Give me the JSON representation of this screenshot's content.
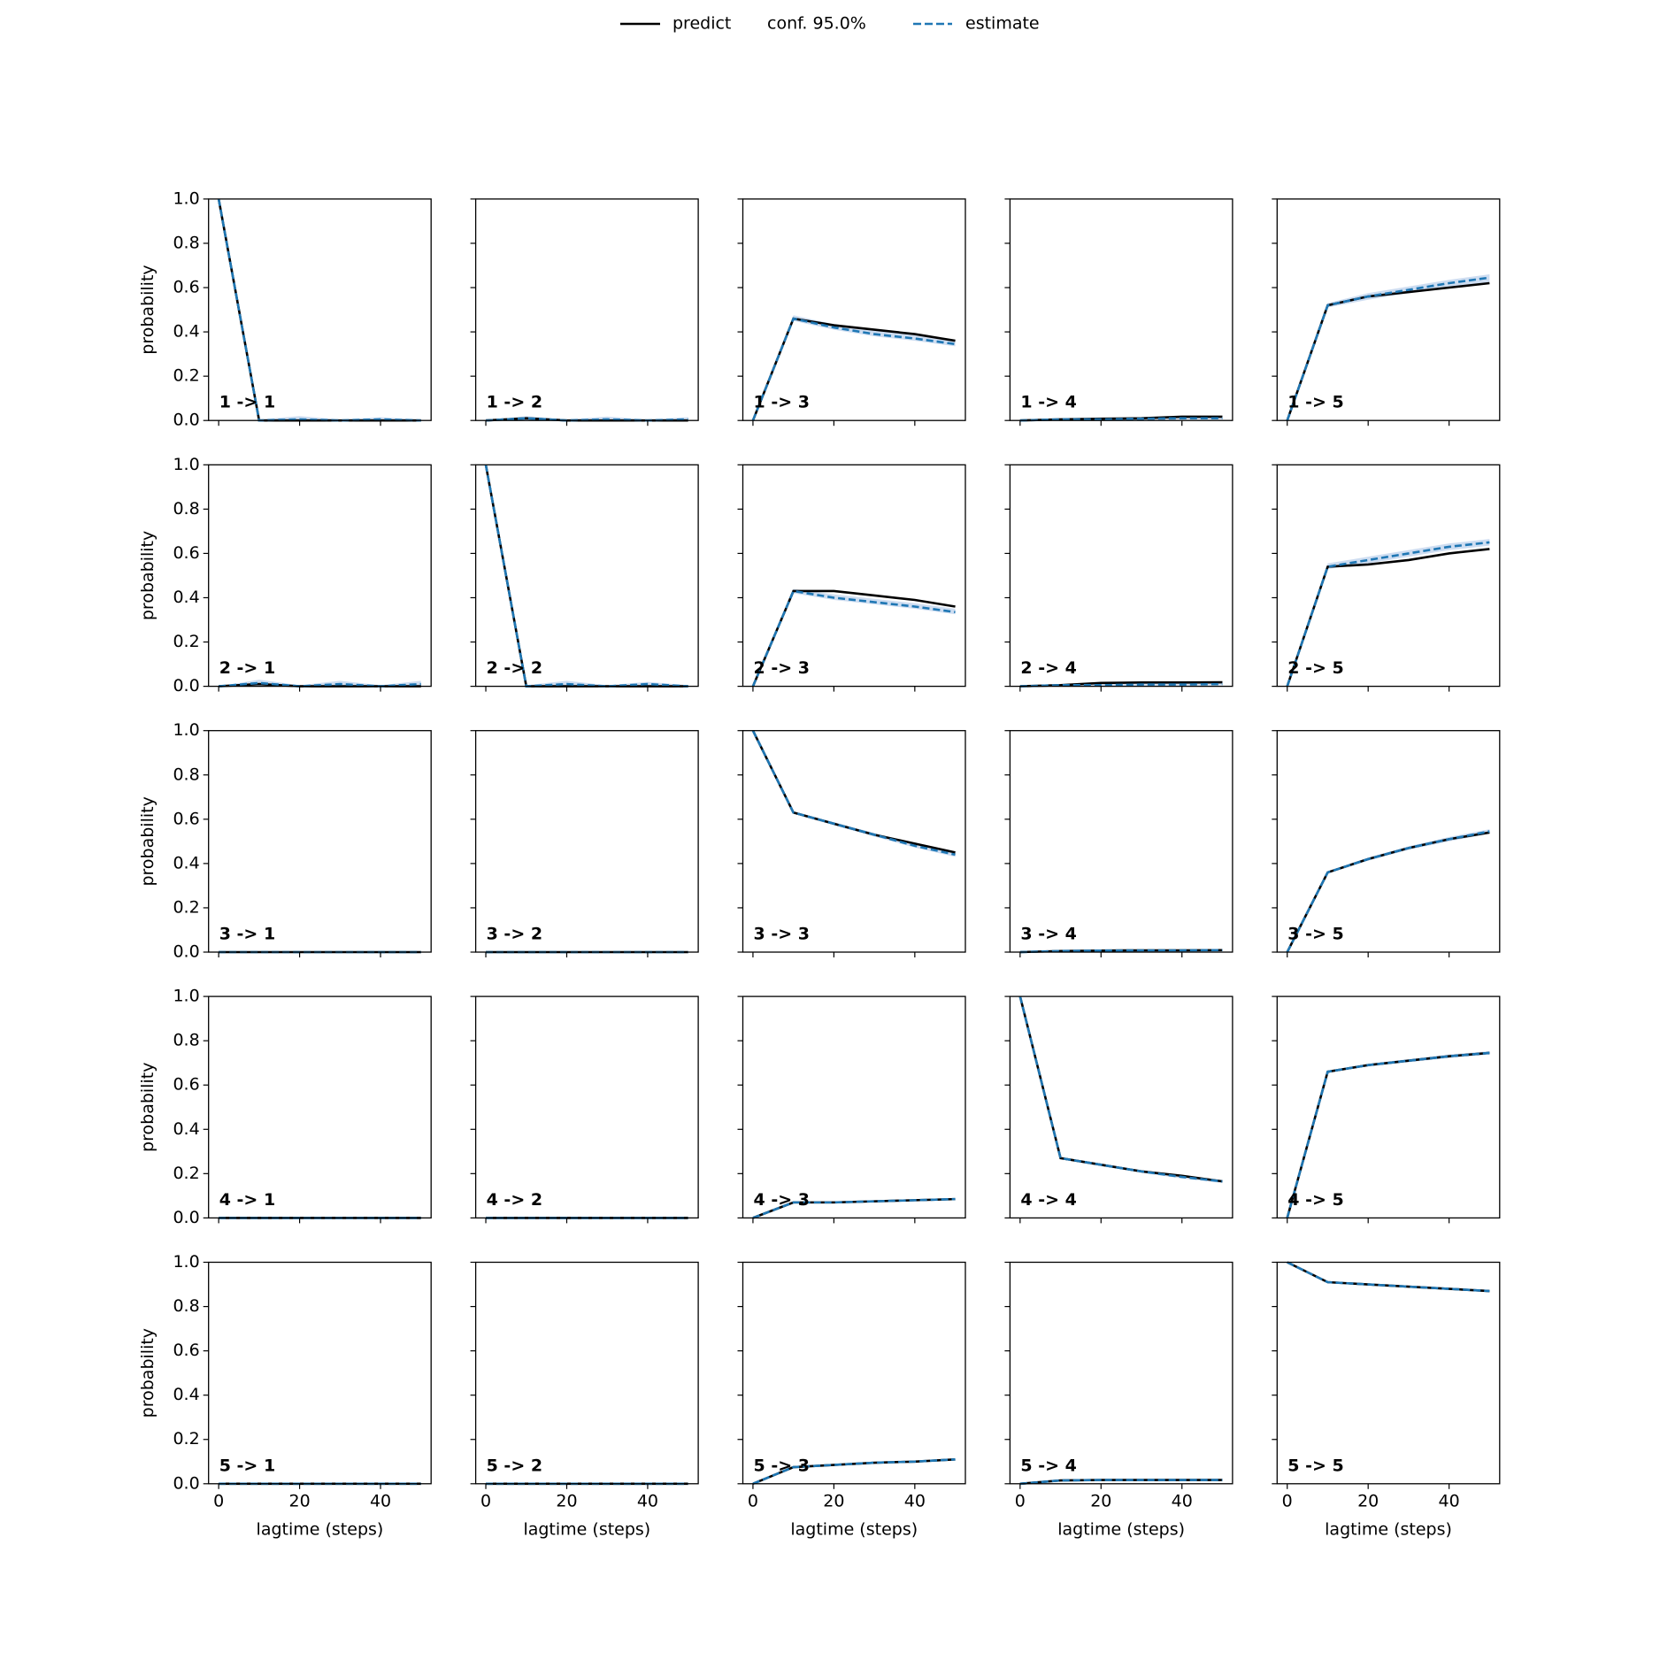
{
  "chart_data": {
    "type": "line",
    "legend": [
      {
        "name": "predict",
        "color": "#000000",
        "style": "solid"
      },
      {
        "name": "conf. 95.0%",
        "color": "#aec7e8",
        "style": "band"
      },
      {
        "name": "estimate",
        "color": "#1f77b4",
        "style": "dashed"
      }
    ],
    "xlabel": "lagtime (steps)",
    "ylabel": "probability",
    "x": [
      0,
      10,
      20,
      30,
      40,
      50
    ],
    "xlim": [
      -2.5,
      52.5
    ],
    "xticks": [
      0,
      20,
      40
    ],
    "ylim": [
      0,
      1
    ],
    "yticks": [
      {
        "value": 0,
        "label": "0.0"
      },
      {
        "value": 0.2,
        "label": "0.2"
      },
      {
        "value": 0.4,
        "label": "0.4"
      },
      {
        "value": 0.6,
        "label": "0.6"
      },
      {
        "value": 0.8,
        "label": "0.8"
      },
      {
        "value": 1,
        "label": "1.0"
      }
    ],
    "panels": [
      {
        "title": "1 -> 1",
        "predict": [
          1,
          0,
          0,
          0,
          0,
          0
        ],
        "estimate": [
          1,
          0,
          0.005,
          0,
          0.005,
          0
        ],
        "conf_lower": [
          1,
          0,
          0,
          0,
          0,
          0
        ],
        "conf_upper": [
          1,
          0.005,
          0.02,
          0.005,
          0.015,
          0.005
        ]
      },
      {
        "title": "1 -> 2",
        "predict": [
          0,
          0.01,
          0,
          0,
          0,
          0
        ],
        "estimate": [
          0,
          0.01,
          0,
          0.005,
          0,
          0.005
        ],
        "conf_lower": [
          0,
          0,
          0,
          0,
          0,
          0
        ],
        "conf_upper": [
          0,
          0.02,
          0.005,
          0.018,
          0.005,
          0.015
        ]
      },
      {
        "title": "1 -> 3",
        "predict": [
          0,
          0.46,
          0.43,
          0.41,
          0.39,
          0.36
        ],
        "estimate": [
          0,
          0.46,
          0.42,
          0.39,
          0.37,
          0.345
        ],
        "conf_lower": [
          0,
          0.45,
          0.41,
          0.38,
          0.36,
          0.335
        ],
        "conf_upper": [
          0,
          0.475,
          0.435,
          0.41,
          0.385,
          0.36
        ]
      },
      {
        "title": "1 -> 4",
        "predict": [
          0,
          0.005,
          0.008,
          0.01,
          0.017,
          0.017
        ],
        "estimate": [
          0,
          0.005,
          0.005,
          0.008,
          0.01,
          0.01
        ],
        "conf_lower": [
          0,
          0,
          0,
          0.003,
          0.005,
          0.005
        ],
        "conf_upper": [
          0,
          0.01,
          0.01,
          0.013,
          0.015,
          0.015
        ]
      },
      {
        "title": "1 -> 5",
        "predict": [
          0,
          0.52,
          0.56,
          0.58,
          0.6,
          0.62
        ],
        "estimate": [
          0,
          0.52,
          0.56,
          0.59,
          0.62,
          0.645
        ],
        "conf_lower": [
          0,
          0.51,
          0.545,
          0.575,
          0.6,
          0.625
        ],
        "conf_upper": [
          0,
          0.53,
          0.575,
          0.605,
          0.635,
          0.66
        ]
      },
      {
        "title": "2 -> 1",
        "predict": [
          0,
          0.01,
          0,
          0,
          0,
          0
        ],
        "estimate": [
          0,
          0.015,
          0,
          0.01,
          0,
          0.01
        ],
        "conf_lower": [
          0,
          0,
          0,
          0,
          0,
          0
        ],
        "conf_upper": [
          0,
          0.03,
          0.005,
          0.025,
          0.005,
          0.025
        ]
      },
      {
        "title": "2 -> 2",
        "predict": [
          1,
          0,
          0,
          0,
          0,
          0
        ],
        "estimate": [
          1,
          0,
          0.01,
          0,
          0.01,
          0
        ],
        "conf_lower": [
          1,
          0,
          0,
          0,
          0,
          0
        ],
        "conf_upper": [
          1,
          0.005,
          0.025,
          0.005,
          0.02,
          0.005
        ]
      },
      {
        "title": "2 -> 3",
        "predict": [
          0,
          0.43,
          0.43,
          0.41,
          0.39,
          0.36
        ],
        "estimate": [
          0,
          0.43,
          0.4,
          0.38,
          0.36,
          0.335
        ],
        "conf_lower": [
          0,
          0.42,
          0.39,
          0.37,
          0.35,
          0.325
        ],
        "conf_upper": [
          0,
          0.44,
          0.415,
          0.395,
          0.375,
          0.35
        ]
      },
      {
        "title": "2 -> 4",
        "predict": [
          0,
          0.005,
          0.015,
          0.017,
          0.017,
          0.018
        ],
        "estimate": [
          0,
          0.005,
          0.005,
          0.008,
          0.008,
          0.01
        ],
        "conf_lower": [
          0,
          0,
          0,
          0.003,
          0.003,
          0.005
        ],
        "conf_upper": [
          0,
          0.01,
          0.01,
          0.013,
          0.013,
          0.015
        ]
      },
      {
        "title": "2 -> 5",
        "predict": [
          0,
          0.54,
          0.55,
          0.57,
          0.6,
          0.62
        ],
        "estimate": [
          0,
          0.54,
          0.57,
          0.6,
          0.63,
          0.65
        ],
        "conf_lower": [
          0,
          0.53,
          0.555,
          0.585,
          0.615,
          0.635
        ],
        "conf_upper": [
          0,
          0.555,
          0.585,
          0.615,
          0.645,
          0.665
        ]
      },
      {
        "title": "3 -> 1",
        "predict": [
          0,
          0,
          0,
          0,
          0,
          0
        ],
        "estimate": [
          0,
          0,
          0,
          0,
          0,
          0
        ],
        "conf_lower": [
          0,
          0,
          0,
          0,
          0,
          0
        ],
        "conf_upper": [
          0,
          0.002,
          0.002,
          0.002,
          0.002,
          0.002
        ]
      },
      {
        "title": "3 -> 2",
        "predict": [
          0,
          0,
          0,
          0,
          0,
          0
        ],
        "estimate": [
          0,
          0,
          0,
          0,
          0,
          0
        ],
        "conf_lower": [
          0,
          0,
          0,
          0,
          0,
          0
        ],
        "conf_upper": [
          0,
          0.002,
          0.002,
          0.002,
          0.002,
          0.002
        ]
      },
      {
        "title": "3 -> 3",
        "predict": [
          1,
          0.63,
          0.58,
          0.53,
          0.49,
          0.45
        ],
        "estimate": [
          1,
          0.63,
          0.58,
          0.53,
          0.48,
          0.44
        ],
        "conf_lower": [
          1,
          0.625,
          0.573,
          0.522,
          0.472,
          0.43
        ],
        "conf_upper": [
          1,
          0.635,
          0.587,
          0.538,
          0.49,
          0.455
        ]
      },
      {
        "title": "3 -> 4",
        "predict": [
          0,
          0.005,
          0.007,
          0.008,
          0.008,
          0.009
        ],
        "estimate": [
          0,
          0.005,
          0.007,
          0.008,
          0.008,
          0.009
        ],
        "conf_lower": [
          0,
          0.003,
          0.005,
          0.006,
          0.006,
          0.007
        ],
        "conf_upper": [
          0,
          0.007,
          0.009,
          0.01,
          0.01,
          0.011
        ]
      },
      {
        "title": "3 -> 5",
        "predict": [
          0,
          0.36,
          0.42,
          0.47,
          0.51,
          0.54
        ],
        "estimate": [
          0,
          0.36,
          0.42,
          0.47,
          0.51,
          0.545
        ],
        "conf_lower": [
          0,
          0.355,
          0.413,
          0.462,
          0.5,
          0.535
        ],
        "conf_upper": [
          0,
          0.365,
          0.427,
          0.478,
          0.52,
          0.555
        ]
      },
      {
        "title": "4 -> 1",
        "predict": [
          0,
          0,
          0,
          0,
          0,
          0
        ],
        "estimate": [
          0,
          0,
          0,
          0,
          0,
          0
        ],
        "conf_lower": [
          0,
          0,
          0,
          0,
          0,
          0
        ],
        "conf_upper": [
          0,
          0.002,
          0.002,
          0.002,
          0.002,
          0.002
        ]
      },
      {
        "title": "4 -> 2",
        "predict": [
          0,
          0,
          0,
          0,
          0,
          0
        ],
        "estimate": [
          0,
          0,
          0,
          0,
          0,
          0
        ],
        "conf_lower": [
          0,
          0,
          0,
          0,
          0,
          0
        ],
        "conf_upper": [
          0,
          0.002,
          0.002,
          0.002,
          0.002,
          0.002
        ]
      },
      {
        "title": "4 -> 3",
        "predict": [
          0,
          0.07,
          0.07,
          0.075,
          0.08,
          0.085
        ],
        "estimate": [
          0,
          0.07,
          0.07,
          0.075,
          0.08,
          0.085
        ],
        "conf_lower": [
          0,
          0.066,
          0.066,
          0.07,
          0.075,
          0.08
        ],
        "conf_upper": [
          0,
          0.074,
          0.074,
          0.08,
          0.085,
          0.09
        ]
      },
      {
        "title": "4 -> 4",
        "predict": [
          1,
          0.27,
          0.24,
          0.21,
          0.19,
          0.165
        ],
        "estimate": [
          1,
          0.27,
          0.24,
          0.21,
          0.185,
          0.165
        ],
        "conf_lower": [
          1,
          0.265,
          0.234,
          0.204,
          0.178,
          0.158
        ],
        "conf_upper": [
          1,
          0.275,
          0.246,
          0.216,
          0.192,
          0.172
        ]
      },
      {
        "title": "4 -> 5",
        "predict": [
          0,
          0.66,
          0.69,
          0.71,
          0.73,
          0.745
        ],
        "estimate": [
          0,
          0.66,
          0.69,
          0.71,
          0.73,
          0.745
        ],
        "conf_lower": [
          0,
          0.655,
          0.684,
          0.703,
          0.722,
          0.737
        ],
        "conf_upper": [
          0,
          0.665,
          0.696,
          0.717,
          0.738,
          0.753
        ]
      },
      {
        "title": "5 -> 1",
        "predict": [
          0,
          0,
          0,
          0,
          0,
          0
        ],
        "estimate": [
          0,
          0,
          0,
          0,
          0,
          0
        ],
        "conf_lower": [
          0,
          0,
          0,
          0,
          0,
          0
        ],
        "conf_upper": [
          0,
          0.002,
          0.002,
          0.002,
          0.002,
          0.002
        ]
      },
      {
        "title": "5 -> 2",
        "predict": [
          0,
          0,
          0,
          0,
          0,
          0
        ],
        "estimate": [
          0,
          0,
          0,
          0,
          0,
          0
        ],
        "conf_lower": [
          0,
          0,
          0,
          0,
          0,
          0
        ],
        "conf_upper": [
          0,
          0.002,
          0.002,
          0.002,
          0.002,
          0.002
        ]
      },
      {
        "title": "5 -> 3",
        "predict": [
          0,
          0.075,
          0.085,
          0.095,
          0.1,
          0.11
        ],
        "estimate": [
          0,
          0.075,
          0.085,
          0.095,
          0.1,
          0.11
        ],
        "conf_lower": [
          0,
          0.072,
          0.082,
          0.091,
          0.096,
          0.106
        ],
        "conf_upper": [
          0,
          0.078,
          0.088,
          0.099,
          0.104,
          0.114
        ]
      },
      {
        "title": "5 -> 4",
        "predict": [
          0,
          0.015,
          0.017,
          0.017,
          0.017,
          0.017
        ],
        "estimate": [
          0,
          0.015,
          0.017,
          0.017,
          0.017,
          0.017
        ],
        "conf_lower": [
          0,
          0.013,
          0.015,
          0.015,
          0.015,
          0.015
        ],
        "conf_upper": [
          0,
          0.017,
          0.019,
          0.019,
          0.019,
          0.019
        ]
      },
      {
        "title": "5 -> 5",
        "predict": [
          1,
          0.91,
          0.9,
          0.89,
          0.88,
          0.87
        ],
        "estimate": [
          1,
          0.91,
          0.9,
          0.89,
          0.88,
          0.87
        ],
        "conf_lower": [
          1,
          0.907,
          0.896,
          0.886,
          0.875,
          0.864
        ],
        "conf_upper": [
          1,
          0.913,
          0.904,
          0.894,
          0.885,
          0.876
        ]
      }
    ]
  }
}
